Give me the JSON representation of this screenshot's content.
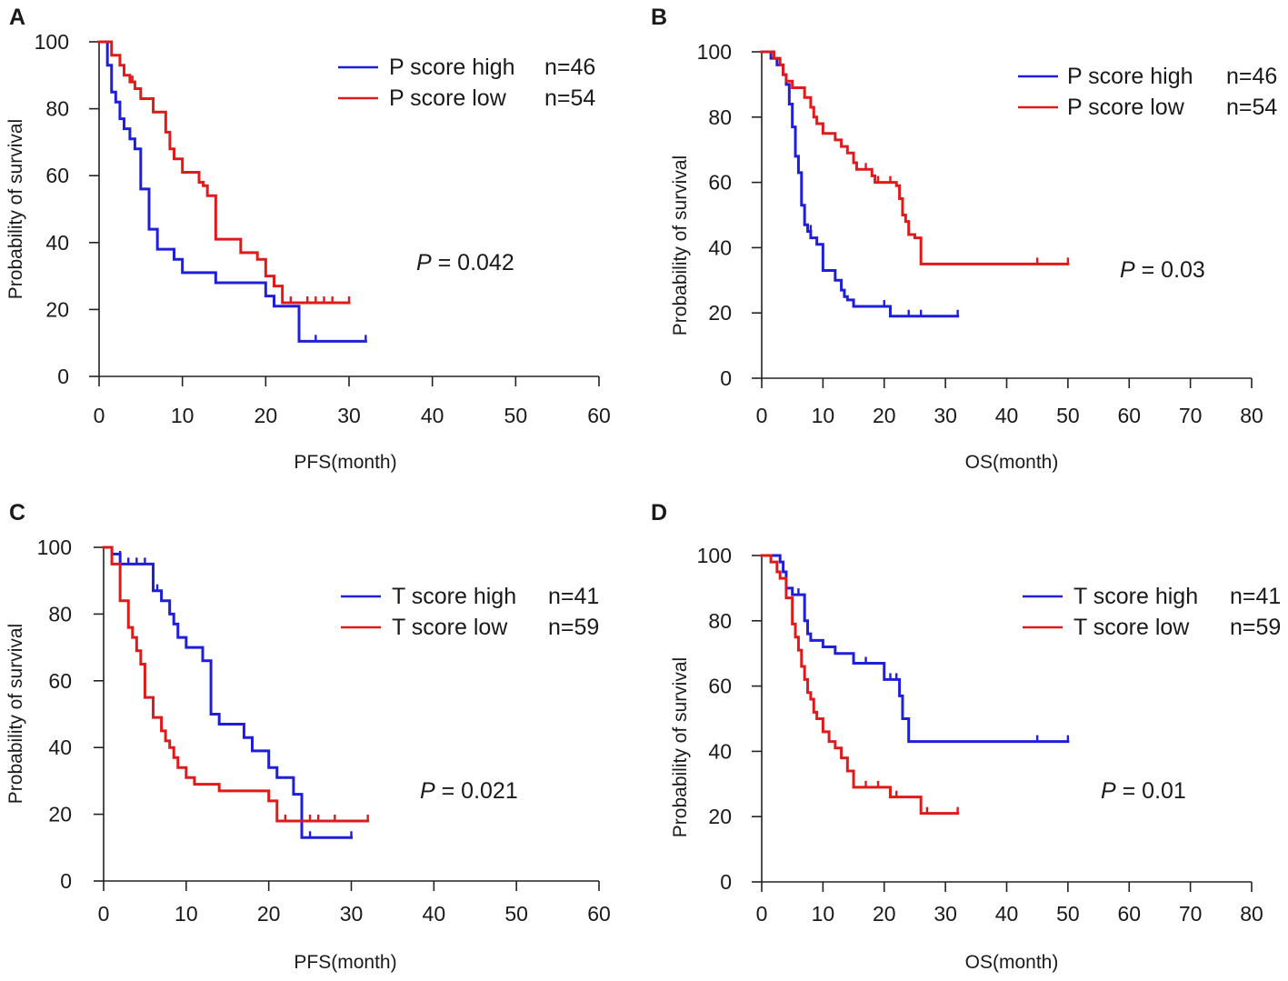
{
  "chart_data": [
    {
      "panel": "A",
      "type": "line",
      "subtype": "kaplan-meier",
      "xlabel": "PFS(month)",
      "ylabel": "Probability of survival",
      "xlim": [
        0,
        60
      ],
      "ylim": [
        0,
        100
      ],
      "xticks": [
        0,
        10,
        20,
        30,
        40,
        50,
        60
      ],
      "yticks": [
        0,
        20,
        40,
        60,
        80,
        100
      ],
      "p_label": "P",
      "p_value": " = 0.042",
      "series": [
        {
          "name": "P score high",
          "n_label": "n=46",
          "color": "#1f1fdb",
          "steps": [
            [
              0,
              100
            ],
            [
              1,
              93
            ],
            [
              1.5,
              85
            ],
            [
              2,
              82
            ],
            [
              2.5,
              77
            ],
            [
              3,
              74
            ],
            [
              3.7,
              71
            ],
            [
              4.3,
              68
            ],
            [
              5,
              56
            ],
            [
              6,
              44
            ],
            [
              7,
              38
            ],
            [
              9,
              35
            ],
            [
              10,
              31
            ],
            [
              14,
              28
            ],
            [
              20,
              24
            ],
            [
              21,
              21
            ],
            [
              24,
              10.5
            ],
            [
              32,
              10.5
            ]
          ],
          "censors": [
            [
              26,
              10.5
            ],
            [
              32,
              10.5
            ]
          ]
        },
        {
          "name": "P score low",
          "n_label": "n=54",
          "color": "#e01a1a",
          "steps": [
            [
              0,
              100
            ],
            [
              1.5,
              96
            ],
            [
              2.5,
              93
            ],
            [
              3,
              90
            ],
            [
              3.7,
              88
            ],
            [
              4.3,
              86
            ],
            [
              5,
              83
            ],
            [
              6.5,
              79
            ],
            [
              8,
              73
            ],
            [
              8.5,
              68
            ],
            [
              9,
              65
            ],
            [
              10,
              61
            ],
            [
              12,
              58
            ],
            [
              12.5,
              57
            ],
            [
              13,
              54
            ],
            [
              14,
              41
            ],
            [
              17,
              37
            ],
            [
              19,
              35
            ],
            [
              20,
              30
            ],
            [
              21,
              27
            ],
            [
              22,
              22
            ],
            [
              30,
              22
            ]
          ],
          "censors": [
            [
              4,
              88
            ],
            [
              6.5,
              79
            ],
            [
              23,
              22
            ],
            [
              25,
              22
            ],
            [
              26,
              22
            ],
            [
              27,
              22
            ],
            [
              28,
              22
            ],
            [
              30,
              22
            ]
          ]
        }
      ]
    },
    {
      "panel": "B",
      "type": "line",
      "subtype": "kaplan-meier",
      "xlabel": "OS(month)",
      "ylabel": "Probability of survival",
      "xlim": [
        0,
        80
      ],
      "ylim": [
        0,
        100
      ],
      "xticks": [
        0,
        10,
        20,
        30,
        40,
        50,
        60,
        70,
        80
      ],
      "yticks": [
        0,
        20,
        40,
        60,
        80,
        100
      ],
      "p_label": "P",
      "p_value": " = 0.03",
      "series": [
        {
          "name": "P score high",
          "n_label": "n=46",
          "color": "#1f1fdb",
          "steps": [
            [
              0,
              100
            ],
            [
              1.5,
              98
            ],
            [
              2.5,
              96
            ],
            [
              3.5,
              93
            ],
            [
              4,
              90
            ],
            [
              4.5,
              84
            ],
            [
              5,
              77
            ],
            [
              5.5,
              68
            ],
            [
              6,
              63
            ],
            [
              6.5,
              53
            ],
            [
              7,
              47
            ],
            [
              7.5,
              45
            ],
            [
              8,
              43
            ],
            [
              9,
              41
            ],
            [
              10,
              33
            ],
            [
              12,
              30
            ],
            [
              13,
              27
            ],
            [
              13.5,
              25
            ],
            [
              14,
              24
            ],
            [
              15,
              22
            ],
            [
              21,
              19
            ],
            [
              32,
              19
            ]
          ],
          "censors": [
            [
              8,
              45
            ],
            [
              20,
              22
            ],
            [
              24,
              19
            ],
            [
              26,
              19
            ],
            [
              32,
              19
            ]
          ]
        },
        {
          "name": "P score low",
          "n_label": "n=54",
          "color": "#e01a1a",
          "steps": [
            [
              0,
              100
            ],
            [
              2,
              98
            ],
            [
              3,
              96
            ],
            [
              3.5,
              93
            ],
            [
              4,
              91
            ],
            [
              5,
              89
            ],
            [
              7,
              86
            ],
            [
              8,
              83
            ],
            [
              8.5,
              80
            ],
            [
              9,
              78
            ],
            [
              10,
              75
            ],
            [
              12,
              73
            ],
            [
              13,
              71
            ],
            [
              14,
              69
            ],
            [
              15,
              66
            ],
            [
              15.5,
              64
            ],
            [
              18,
              62
            ],
            [
              18.5,
              60
            ],
            [
              22,
              59
            ],
            [
              22.5,
              55
            ],
            [
              23,
              50
            ],
            [
              23.5,
              48
            ],
            [
              24,
              44
            ],
            [
              25,
              43
            ],
            [
              26,
              35
            ],
            [
              50,
              35
            ]
          ],
          "censors": [
            [
              3,
              96
            ],
            [
              10,
              75
            ],
            [
              12,
              73
            ],
            [
              17,
              64
            ],
            [
              19,
              60
            ],
            [
              21,
              60
            ],
            [
              45,
              35
            ],
            [
              50,
              35
            ]
          ]
        }
      ]
    },
    {
      "panel": "C",
      "type": "line",
      "subtype": "kaplan-meier",
      "xlabel": "PFS(month)",
      "ylabel": "Probability of survival",
      "xlim": [
        0,
        60
      ],
      "ylim": [
        0,
        100
      ],
      "xticks": [
        0,
        10,
        20,
        30,
        40,
        50,
        60
      ],
      "yticks": [
        0,
        20,
        40,
        60,
        80,
        100
      ],
      "p_label": "P",
      "p_value": " = 0.021",
      "series": [
        {
          "name": "T score high",
          "n_label": "n=41",
          "color": "#1f1fdb",
          "steps": [
            [
              0,
              100
            ],
            [
              1,
              98
            ],
            [
              2,
              95
            ],
            [
              6,
              87
            ],
            [
              7,
              84
            ],
            [
              8,
              80
            ],
            [
              8.5,
              77
            ],
            [
              9,
              73
            ],
            [
              10,
              70
            ],
            [
              12,
              66
            ],
            [
              13,
              50
            ],
            [
              14,
              47
            ],
            [
              17,
              43
            ],
            [
              18,
              39
            ],
            [
              20,
              34
            ],
            [
              21,
              31
            ],
            [
              23,
              26
            ],
            [
              24,
              13
            ],
            [
              30,
              13
            ]
          ],
          "censors": [
            [
              2,
              97
            ],
            [
              3,
              95
            ],
            [
              4,
              95
            ],
            [
              5,
              95
            ],
            [
              6.5,
              87
            ],
            [
              9,
              73
            ],
            [
              25,
              13
            ],
            [
              30,
              13
            ]
          ]
        },
        {
          "name": "T score low",
          "n_label": "n=59",
          "color": "#e01a1a",
          "steps": [
            [
              0,
              100
            ],
            [
              1,
              95
            ],
            [
              2,
              84
            ],
            [
              3,
              76
            ],
            [
              3.5,
              73
            ],
            [
              4,
              69
            ],
            [
              4.5,
              65
            ],
            [
              5,
              55
            ],
            [
              6,
              49
            ],
            [
              7,
              45
            ],
            [
              7.5,
              42
            ],
            [
              8,
              40
            ],
            [
              8.5,
              37
            ],
            [
              9,
              34
            ],
            [
              10,
              31
            ],
            [
              11,
              29
            ],
            [
              14,
              27
            ],
            [
              20,
              24
            ],
            [
              21,
              18
            ],
            [
              32,
              18
            ]
          ],
          "censors": [
            [
              22,
              18
            ],
            [
              25,
              18
            ],
            [
              26,
              18
            ],
            [
              28,
              18
            ],
            [
              32,
              18
            ]
          ]
        }
      ]
    },
    {
      "panel": "D",
      "type": "line",
      "subtype": "kaplan-meier",
      "xlabel": "OS(month)",
      "ylabel": "Probability of survival",
      "xlim": [
        0,
        80
      ],
      "ylim": [
        0,
        100
      ],
      "xticks": [
        0,
        10,
        20,
        30,
        40,
        50,
        60,
        70,
        80
      ],
      "yticks": [
        0,
        20,
        40,
        60,
        80,
        100
      ],
      "p_label": "P",
      "p_value": " = 0.01",
      "series": [
        {
          "name": "T score high",
          "n_label": "n=41",
          "color": "#1f1fdb",
          "steps": [
            [
              0,
              100
            ],
            [
              3,
              98
            ],
            [
              3.5,
              95
            ],
            [
              4,
              90
            ],
            [
              5,
              88
            ],
            [
              7,
              80
            ],
            [
              7.5,
              76
            ],
            [
              8,
              74
            ],
            [
              10,
              72
            ],
            [
              12,
              70
            ],
            [
              15,
              67
            ],
            [
              20,
              62
            ],
            [
              22,
              62
            ],
            [
              22.5,
              57
            ],
            [
              23,
              50
            ],
            [
              24,
              43
            ],
            [
              50,
              43
            ]
          ],
          "censors": [
            [
              4,
              93
            ],
            [
              6,
              88
            ],
            [
              17,
              67
            ],
            [
              21,
              62
            ],
            [
              22,
              62
            ],
            [
              45,
              43
            ],
            [
              50,
              43
            ]
          ]
        },
        {
          "name": "T score low",
          "n_label": "n=59",
          "color": "#e01a1a",
          "steps": [
            [
              0,
              100
            ],
            [
              1.5,
              98
            ],
            [
              2.5,
              95
            ],
            [
              3,
              93
            ],
            [
              4,
              87
            ],
            [
              5,
              79
            ],
            [
              5.5,
              75
            ],
            [
              6,
              71
            ],
            [
              6.5,
              66
            ],
            [
              7,
              62
            ],
            [
              7.5,
              58
            ],
            [
              8,
              56
            ],
            [
              8.5,
              52
            ],
            [
              9,
              50
            ],
            [
              10,
              46
            ],
            [
              11,
              43
            ],
            [
              12,
              41
            ],
            [
              13,
              38
            ],
            [
              14,
              34
            ],
            [
              15,
              29
            ],
            [
              20,
              29
            ],
            [
              21,
              26
            ],
            [
              26,
              21
            ],
            [
              32,
              21
            ]
          ],
          "censors": [
            [
              17,
              29
            ],
            [
              19,
              29
            ],
            [
              22,
              26
            ],
            [
              27,
              21
            ],
            [
              32,
              21
            ]
          ]
        }
      ]
    }
  ]
}
